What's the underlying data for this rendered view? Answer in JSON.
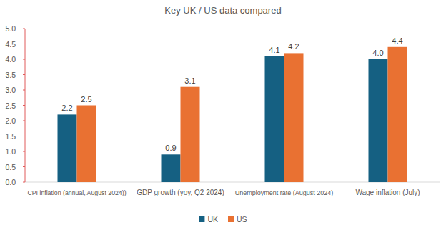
{
  "chart_data": {
    "type": "bar",
    "title": "Key UK / US data compared",
    "categories": [
      "CPI inflation (annual, August 2024))",
      "GDP growth (yoy, Q2 2024)",
      "Unemployment rate (August 2024)",
      "Wage inflation (July)"
    ],
    "series": [
      {
        "name": "UK",
        "color": "#156082",
        "values": [
          2.2,
          0.9,
          4.1,
          4.0
        ],
        "value_labels": [
          "2.2",
          "0.9",
          "4.1",
          "4.0"
        ]
      },
      {
        "name": "US",
        "color": "#e97132",
        "values": [
          2.5,
          3.1,
          4.2,
          4.4
        ],
        "value_labels": [
          "2.5",
          "3.1",
          "4.2",
          "4.4"
        ]
      }
    ],
    "ylim": [
      0,
      5
    ],
    "yticks": [
      {
        "value": 0,
        "label": "0.0"
      },
      0.5,
      {
        "value": 1,
        "label": "1.0"
      },
      1.5,
      {
        "value": 2,
        "label": "2.0"
      },
      2.5,
      {
        "value": 3,
        "label": "3.0"
      },
      3.5,
      {
        "value": 4,
        "label": "4.0"
      },
      4.5,
      {
        "value": 5,
        "label": "5.0"
      }
    ],
    "grid": false,
    "data_labels": true,
    "legend": "bottom"
  }
}
